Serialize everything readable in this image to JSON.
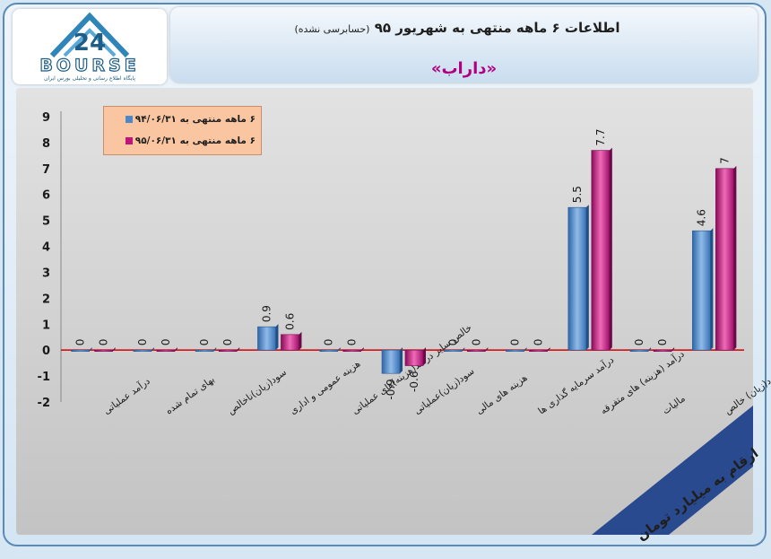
{
  "logo": {
    "number_mark": "24",
    "word": "BOURSE",
    "tagline": "پایگاه اطلاع رسانی و تحلیلی بورس ایران"
  },
  "header": {
    "title": "اطلاعات ۶ ماهه منتهی به شهریور ۹۵",
    "title_note": "(حسابرسی نشده)",
    "subtitle": "«داراب»"
  },
  "units_label": "ارقام به میلیارد تومان",
  "colors": {
    "series_1": "#4f86c6",
    "series_2": "#c0147a",
    "zero_line": "#d40000",
    "legend_bg": "#f9c6a1"
  },
  "chart_data": {
    "type": "bar",
    "title": "اطلاعات ۶ ماهه منتهی به شهریور ۹۵",
    "categories": [
      "درآمد عملیاتی",
      "بهای تمام شده",
      "سود(زیان)ناخالص",
      "هزینه عمومی و اداری",
      "خالص سایر درآمد(هزینه)های عملیاتی",
      "سود(زیان)عملیاتی",
      "هزینه های مالی",
      "درآمد سرمایه گذاری ها",
      "درآمد (هزینه) های متفرقه",
      "مالیات",
      "سود(زیان) خالص"
    ],
    "series": [
      {
        "name": "۶ ماهه منتهی به ۹۴/۰۶/۳۱",
        "values": [
          0,
          0,
          0,
          0.9,
          0,
          -0.9,
          0,
          0,
          5.5,
          0,
          4.6
        ]
      },
      {
        "name": "۶ ماهه منتهی به ۹۵/۰۶/۳۱",
        "values": [
          0,
          0,
          0,
          0.6,
          0,
          -0.6,
          0,
          0,
          7.7,
          0,
          7
        ]
      }
    ],
    "ylim": [
      -2,
      9
    ],
    "y_ticks": [
      "-2",
      "-1",
      "0",
      "1",
      "2",
      "3",
      "4",
      "5",
      "6",
      "7",
      "8",
      "9"
    ],
    "data_labels_series_1": [
      "0",
      "0",
      "0",
      "0.9",
      "0",
      "-0.9",
      "0",
      "0",
      "5.5",
      "0",
      "4.6"
    ],
    "data_labels_series_2": [
      "0",
      "0",
      "0",
      "0.6",
      "0",
      "-0.6",
      "0",
      "0",
      "7.7",
      "0",
      "7"
    ],
    "grid": false,
    "legend_position": "top-left"
  }
}
